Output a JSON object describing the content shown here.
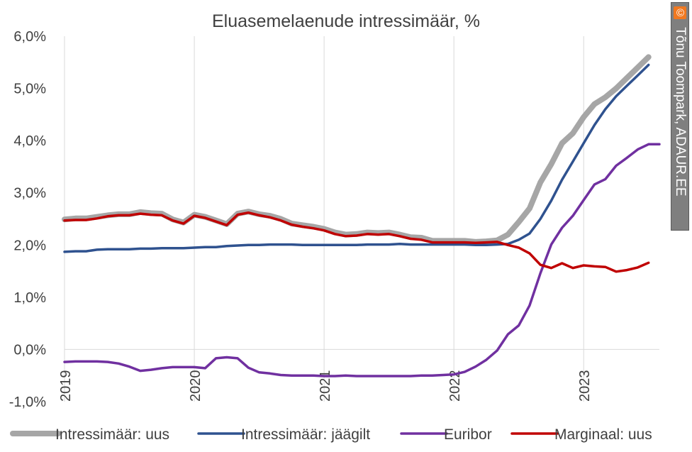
{
  "chart_data": {
    "type": "line",
    "title": "Eluasemelaenude intressimäär, %",
    "xlabel": "",
    "ylabel": "",
    "ylim": [
      -1.0,
      6.0
    ],
    "yticks": [
      6.0,
      5.0,
      4.0,
      3.0,
      2.0,
      1.0,
      0.0,
      -1.0
    ],
    "ytick_labels": [
      "6,0%",
      "5,0%",
      "4,0%",
      "3,0%",
      "2,0%",
      "1,0%",
      "0,0%",
      "-1,0%"
    ],
    "xlim": [
      0,
      55
    ],
    "xticks": [
      0,
      12,
      24,
      36,
      48
    ],
    "xtick_labels": [
      "2019",
      "2020",
      "2021",
      "2022",
      "2023"
    ],
    "x_unit": "months since Jan 2019",
    "grid": "vertical",
    "legend_position": "bottom",
    "series": [
      {
        "name": "Intressimäär: uus",
        "color": "#a6a6a6",
        "style": "thick",
        "x_start": 0,
        "values": [
          2.49,
          2.51,
          2.51,
          2.54,
          2.57,
          2.59,
          2.59,
          2.63,
          2.61,
          2.6,
          2.49,
          2.43,
          2.58,
          2.54,
          2.47,
          2.4,
          2.6,
          2.64,
          2.59,
          2.56,
          2.5,
          2.41,
          2.38,
          2.35,
          2.31,
          2.24,
          2.2,
          2.21,
          2.24,
          2.23,
          2.24,
          2.2,
          2.15,
          2.14,
          2.08,
          2.08,
          2.08,
          2.08,
          2.06,
          2.07,
          2.09,
          2.2,
          2.44,
          2.7,
          3.2,
          3.55,
          3.95,
          4.14,
          4.45,
          4.7,
          4.83,
          5.0,
          5.2,
          5.4,
          5.6
        ]
      },
      {
        "name": "Intressimäär: jäägilt",
        "color": "#2f528f",
        "style": "line",
        "x_start": 0,
        "values": [
          1.87,
          1.88,
          1.88,
          1.91,
          1.92,
          1.92,
          1.92,
          1.93,
          1.93,
          1.94,
          1.94,
          1.94,
          1.95,
          1.96,
          1.96,
          1.98,
          1.99,
          2.0,
          2.0,
          2.01,
          2.01,
          2.01,
          2.0,
          2.0,
          2.0,
          2.0,
          2.0,
          2.0,
          2.01,
          2.01,
          2.01,
          2.02,
          2.01,
          2.01,
          2.01,
          2.01,
          2.01,
          2.01,
          2.0,
          2.0,
          2.01,
          2.02,
          2.1,
          2.22,
          2.5,
          2.85,
          3.25,
          3.6,
          3.95,
          4.3,
          4.6,
          4.85,
          5.05,
          5.25,
          5.45
        ]
      },
      {
        "name": "Euribor",
        "color": "#7030a0",
        "style": "line",
        "x_start": 0,
        "values": [
          -0.24,
          -0.23,
          -0.23,
          -0.23,
          -0.24,
          -0.27,
          -0.33,
          -0.41,
          -0.39,
          -0.36,
          -0.34,
          -0.34,
          -0.34,
          -0.36,
          -0.17,
          -0.15,
          -0.17,
          -0.35,
          -0.44,
          -0.46,
          -0.49,
          -0.5,
          -0.5,
          -0.5,
          -0.51,
          -0.51,
          -0.5,
          -0.51,
          -0.51,
          -0.51,
          -0.51,
          -0.51,
          -0.51,
          -0.5,
          -0.5,
          -0.49,
          -0.48,
          -0.43,
          -0.33,
          -0.2,
          -0.02,
          0.29,
          0.46,
          0.84,
          1.46,
          2.01,
          2.33,
          2.56,
          2.86,
          3.16,
          3.26,
          3.52,
          3.67,
          3.83,
          3.93,
          3.93
        ]
      },
      {
        "name": "Marginaal: uus",
        "color": "#c00000",
        "style": "line",
        "x_start": 0,
        "values": [
          2.47,
          2.48,
          2.48,
          2.51,
          2.55,
          2.57,
          2.57,
          2.6,
          2.58,
          2.57,
          2.47,
          2.41,
          2.56,
          2.52,
          2.45,
          2.38,
          2.58,
          2.62,
          2.57,
          2.53,
          2.47,
          2.39,
          2.35,
          2.32,
          2.28,
          2.21,
          2.17,
          2.18,
          2.21,
          2.2,
          2.21,
          2.17,
          2.12,
          2.1,
          2.05,
          2.05,
          2.05,
          2.05,
          2.04,
          2.05,
          2.06,
          2.0,
          1.95,
          1.84,
          1.62,
          1.56,
          1.65,
          1.56,
          1.61,
          1.59,
          1.58,
          1.49,
          1.52,
          1.57,
          1.66
        ]
      }
    ]
  },
  "credit": {
    "symbol": "©",
    "text": "Tõnu Toompark, ADAUR.EE"
  }
}
